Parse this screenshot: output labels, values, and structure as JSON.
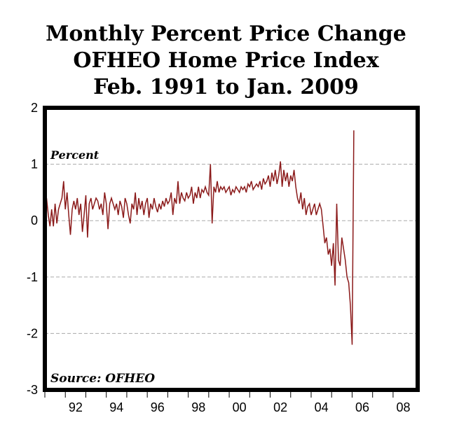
{
  "chart_data": {
    "type": "line",
    "title_lines": [
      "Monthly Percent Price Change",
      "OFHEO Home Price Index",
      "Feb. 1991 to Jan. 2009"
    ],
    "ylabel": "Percent",
    "source": "Source: OFHEO",
    "ylim": [
      -3,
      2
    ],
    "yticks": [
      2,
      1,
      0,
      -1,
      -2,
      -3
    ],
    "ytick_labels": [
      "2",
      "1",
      "0",
      "-1",
      "-2",
      "-3"
    ],
    "xlim": [
      1991.0,
      2009.2
    ],
    "xticks": [
      1992,
      1994,
      1996,
      1998,
      2000,
      2002,
      2004,
      2006,
      2008
    ],
    "xtick_labels": [
      "92",
      "94",
      "96",
      "98",
      "00",
      "02",
      "04",
      "06",
      "08"
    ],
    "grid": true,
    "line_color": "#8b1a1a",
    "series": [
      {
        "x_start": "1991-02",
        "frequency": "monthly",
        "values": [
          0.4,
          0.1,
          -0.1,
          0.2,
          -0.1,
          0.3,
          -0.05,
          0.2,
          0.3,
          0.4,
          0.7,
          0.2,
          0.5,
          0.1,
          -0.25,
          0.2,
          0.35,
          0.2,
          0.4,
          0.1,
          0.3,
          -0.2,
          0.1,
          0.45,
          -0.3,
          0.3,
          0.4,
          0.2,
          0.3,
          0.4,
          0.35,
          0.2,
          0.3,
          0.1,
          0.5,
          0.3,
          -0.15,
          0.3,
          0.4,
          0.3,
          0.2,
          0.3,
          0.1,
          0.35,
          0.25,
          0.05,
          0.4,
          0.3,
          0.1,
          -0.05,
          0.3,
          0.2,
          0.5,
          0.1,
          0.4,
          0.2,
          0.35,
          0.1,
          0.3,
          0.4,
          0.05,
          0.3,
          0.2,
          0.4,
          0.25,
          0.15,
          0.3,
          0.2,
          0.35,
          0.25,
          0.4,
          0.3,
          0.35,
          0.5,
          0.1,
          0.4,
          0.3,
          0.7,
          0.3,
          0.5,
          0.4,
          0.35,
          0.5,
          0.4,
          0.45,
          0.6,
          0.3,
          0.5,
          0.4,
          0.6,
          0.4,
          0.55,
          0.5,
          0.6,
          0.5,
          0.45,
          1.0,
          -0.05,
          0.6,
          0.5,
          0.7,
          0.5,
          0.6,
          0.55,
          0.6,
          0.5,
          0.55,
          0.6,
          0.45,
          0.55,
          0.5,
          0.6,
          0.55,
          0.5,
          0.6,
          0.55,
          0.6,
          0.5,
          0.65,
          0.6,
          0.7,
          0.55,
          0.6,
          0.65,
          0.6,
          0.7,
          0.55,
          0.75,
          0.65,
          0.7,
          0.8,
          0.6,
          0.85,
          0.7,
          0.9,
          0.65,
          0.8,
          1.05,
          0.6,
          0.9,
          0.7,
          0.85,
          0.6,
          0.8,
          0.7,
          0.9,
          0.6,
          0.4,
          0.3,
          0.5,
          0.2,
          0.4,
          0.1,
          0.25,
          0.3,
          0.1,
          0.2,
          0.3,
          0.1,
          0.2,
          0.3,
          0.2,
          -0.1,
          -0.4,
          -0.3,
          -0.6,
          -0.5,
          -0.8,
          -0.4,
          -1.15,
          0.3,
          -0.7,
          -0.8,
          -0.3,
          -0.5,
          -0.7,
          -1.0,
          -1.1,
          -1.5,
          -2.2,
          1.6
        ]
      }
    ]
  }
}
